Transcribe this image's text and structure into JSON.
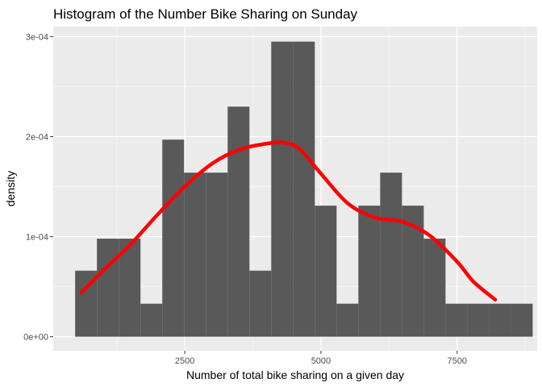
{
  "chart_data": {
    "type": "bar",
    "title": "Histogram of the Number Bike Sharing on Sunday",
    "xlabel": "Number of total bike sharing on a given day",
    "ylabel": "density",
    "xlim": [
      85,
      8969
    ],
    "ylim": [
      -1.4e-05,
      0.00031
    ],
    "x_ticks": [
      {
        "value": 2500,
        "label": "2500"
      },
      {
        "value": 5000,
        "label": "5000"
      },
      {
        "value": 7500,
        "label": "7500"
      }
    ],
    "x_minor_ticks": [
      1250,
      3750,
      6250,
      8750
    ],
    "y_ticks": [
      {
        "value": 0,
        "label": "0e+00"
      },
      {
        "value": 0.0001,
        "label": "1e-04"
      },
      {
        "value": 0.0002,
        "label": "2e-04"
      },
      {
        "value": 0.0003,
        "label": "3e-04"
      }
    ],
    "y_minor_ticks": [
      5e-05,
      0.00015,
      0.00025
    ],
    "grid": true,
    "bin_width": 400,
    "bins": [
      {
        "x0": 487,
        "x1": 887,
        "density": 6.6e-05
      },
      {
        "x0": 887,
        "x1": 1287,
        "density": 9.8e-05
      },
      {
        "x0": 1287,
        "x1": 1687,
        "density": 9.8e-05
      },
      {
        "x0": 1687,
        "x1": 2087,
        "density": 3.3e-05
      },
      {
        "x0": 2087,
        "x1": 2487,
        "density": 0.000197
      },
      {
        "x0": 2487,
        "x1": 2887,
        "density": 0.000164
      },
      {
        "x0": 2887,
        "x1": 3287,
        "density": 0.000164
      },
      {
        "x0": 3287,
        "x1": 3687,
        "density": 0.00023
      },
      {
        "x0": 3687,
        "x1": 4087,
        "density": 6.6e-05
      },
      {
        "x0": 4087,
        "x1": 4487,
        "density": 0.000295
      },
      {
        "x0": 4487,
        "x1": 4887,
        "density": 0.000295
      },
      {
        "x0": 4887,
        "x1": 5287,
        "density": 0.000131
      },
      {
        "x0": 5287,
        "x1": 5687,
        "density": 3.3e-05
      },
      {
        "x0": 5687,
        "x1": 6087,
        "density": 0.000131
      },
      {
        "x0": 6087,
        "x1": 6487,
        "density": 0.000164
      },
      {
        "x0": 6487,
        "x1": 6887,
        "density": 0.000131
      },
      {
        "x0": 6887,
        "x1": 7287,
        "density": 9.8e-05
      },
      {
        "x0": 7287,
        "x1": 7687,
        "density": 3.3e-05
      },
      {
        "x0": 7687,
        "x1": 8087,
        "density": 3.3e-05
      },
      {
        "x0": 8087,
        "x1": 8487,
        "density": 3.3e-05
      },
      {
        "x0": 8487,
        "x1": 8887,
        "density": 3.3e-05
      }
    ],
    "density_curve": {
      "x": [
        600,
        1000,
        1500,
        2000,
        2500,
        3000,
        3500,
        4000,
        4300,
        4600,
        5000,
        5500,
        6000,
        6500,
        7000,
        7500,
        7800,
        8200
      ],
      "y": [
        4.4e-05,
        6.6e-05,
        9.2e-05,
        0.000122,
        0.00015,
        0.000173,
        0.000187,
        0.000193,
        0.000194,
        0.000188,
        0.000163,
        0.000133,
        0.000119,
        0.000115,
        0.000101,
        7.5e-05,
        5.5e-05,
        3.7e-05
      ]
    },
    "colors": {
      "panel": "#ebebeb",
      "grid_major": "#ffffff",
      "bar": "#595959",
      "curve": "#ff0000"
    }
  }
}
